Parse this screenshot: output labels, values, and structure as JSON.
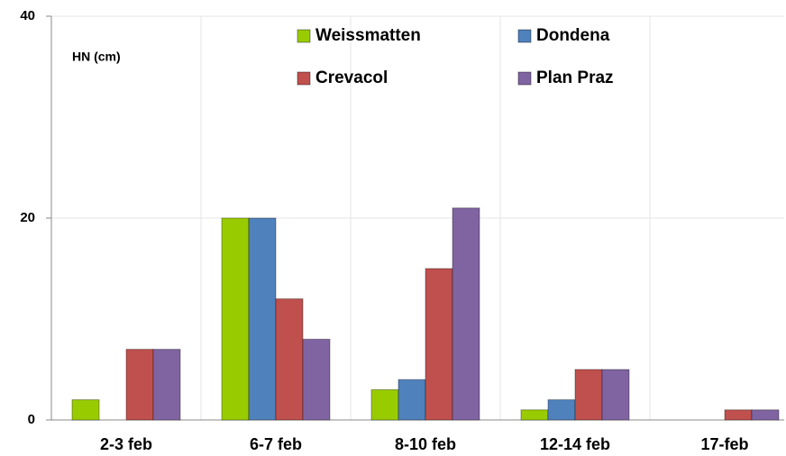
{
  "chart_data": {
    "type": "bar",
    "y_label": "HN (cm)",
    "categories": [
      "2-3 feb",
      "6-7 feb",
      "8-10 feb",
      "12-14 feb",
      "17-feb"
    ],
    "series": [
      {
        "name": "Weissmatten",
        "color": "#99cc00",
        "values": [
          2,
          20,
          3,
          1,
          0
        ]
      },
      {
        "name": "Dondena",
        "color": "#4f81bd",
        "values": [
          0,
          20,
          4,
          2,
          0
        ]
      },
      {
        "name": "Crevacol",
        "color": "#c0504d",
        "values": [
          7,
          12,
          15,
          5,
          1
        ]
      },
      {
        "name": "Plan Praz",
        "color": "#8064a2",
        "values": [
          7,
          8,
          21,
          5,
          1
        ]
      }
    ],
    "ylim": [
      0,
      40
    ],
    "yticks": [
      0,
      20,
      40
    ],
    "grid": true
  }
}
